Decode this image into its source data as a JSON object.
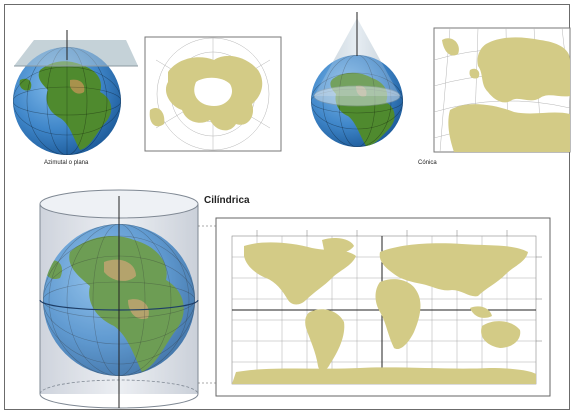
{
  "panels": {
    "azimuthal": {
      "caption": "Azimutal o plana"
    },
    "conic": {
      "caption": "Cónica"
    },
    "cylindrical": {
      "title": "Cilíndrica"
    }
  },
  "colors": {
    "ocean": "#3f86c9",
    "ocean_dark": "#1d5b9a",
    "land_green": "#4f8a2e",
    "land_map": "#d3cb86",
    "map_bg": "#ffffff",
    "grid": "#9a9a9a",
    "plane": "#b9c8cf",
    "cylinder": "#dfe3ea",
    "cone": "#c9d6df"
  },
  "icons": {
    "azimuthal_globe": "globe-icon",
    "conic_globe": "globe-icon",
    "cylindrical_globe": "globe-icon"
  }
}
